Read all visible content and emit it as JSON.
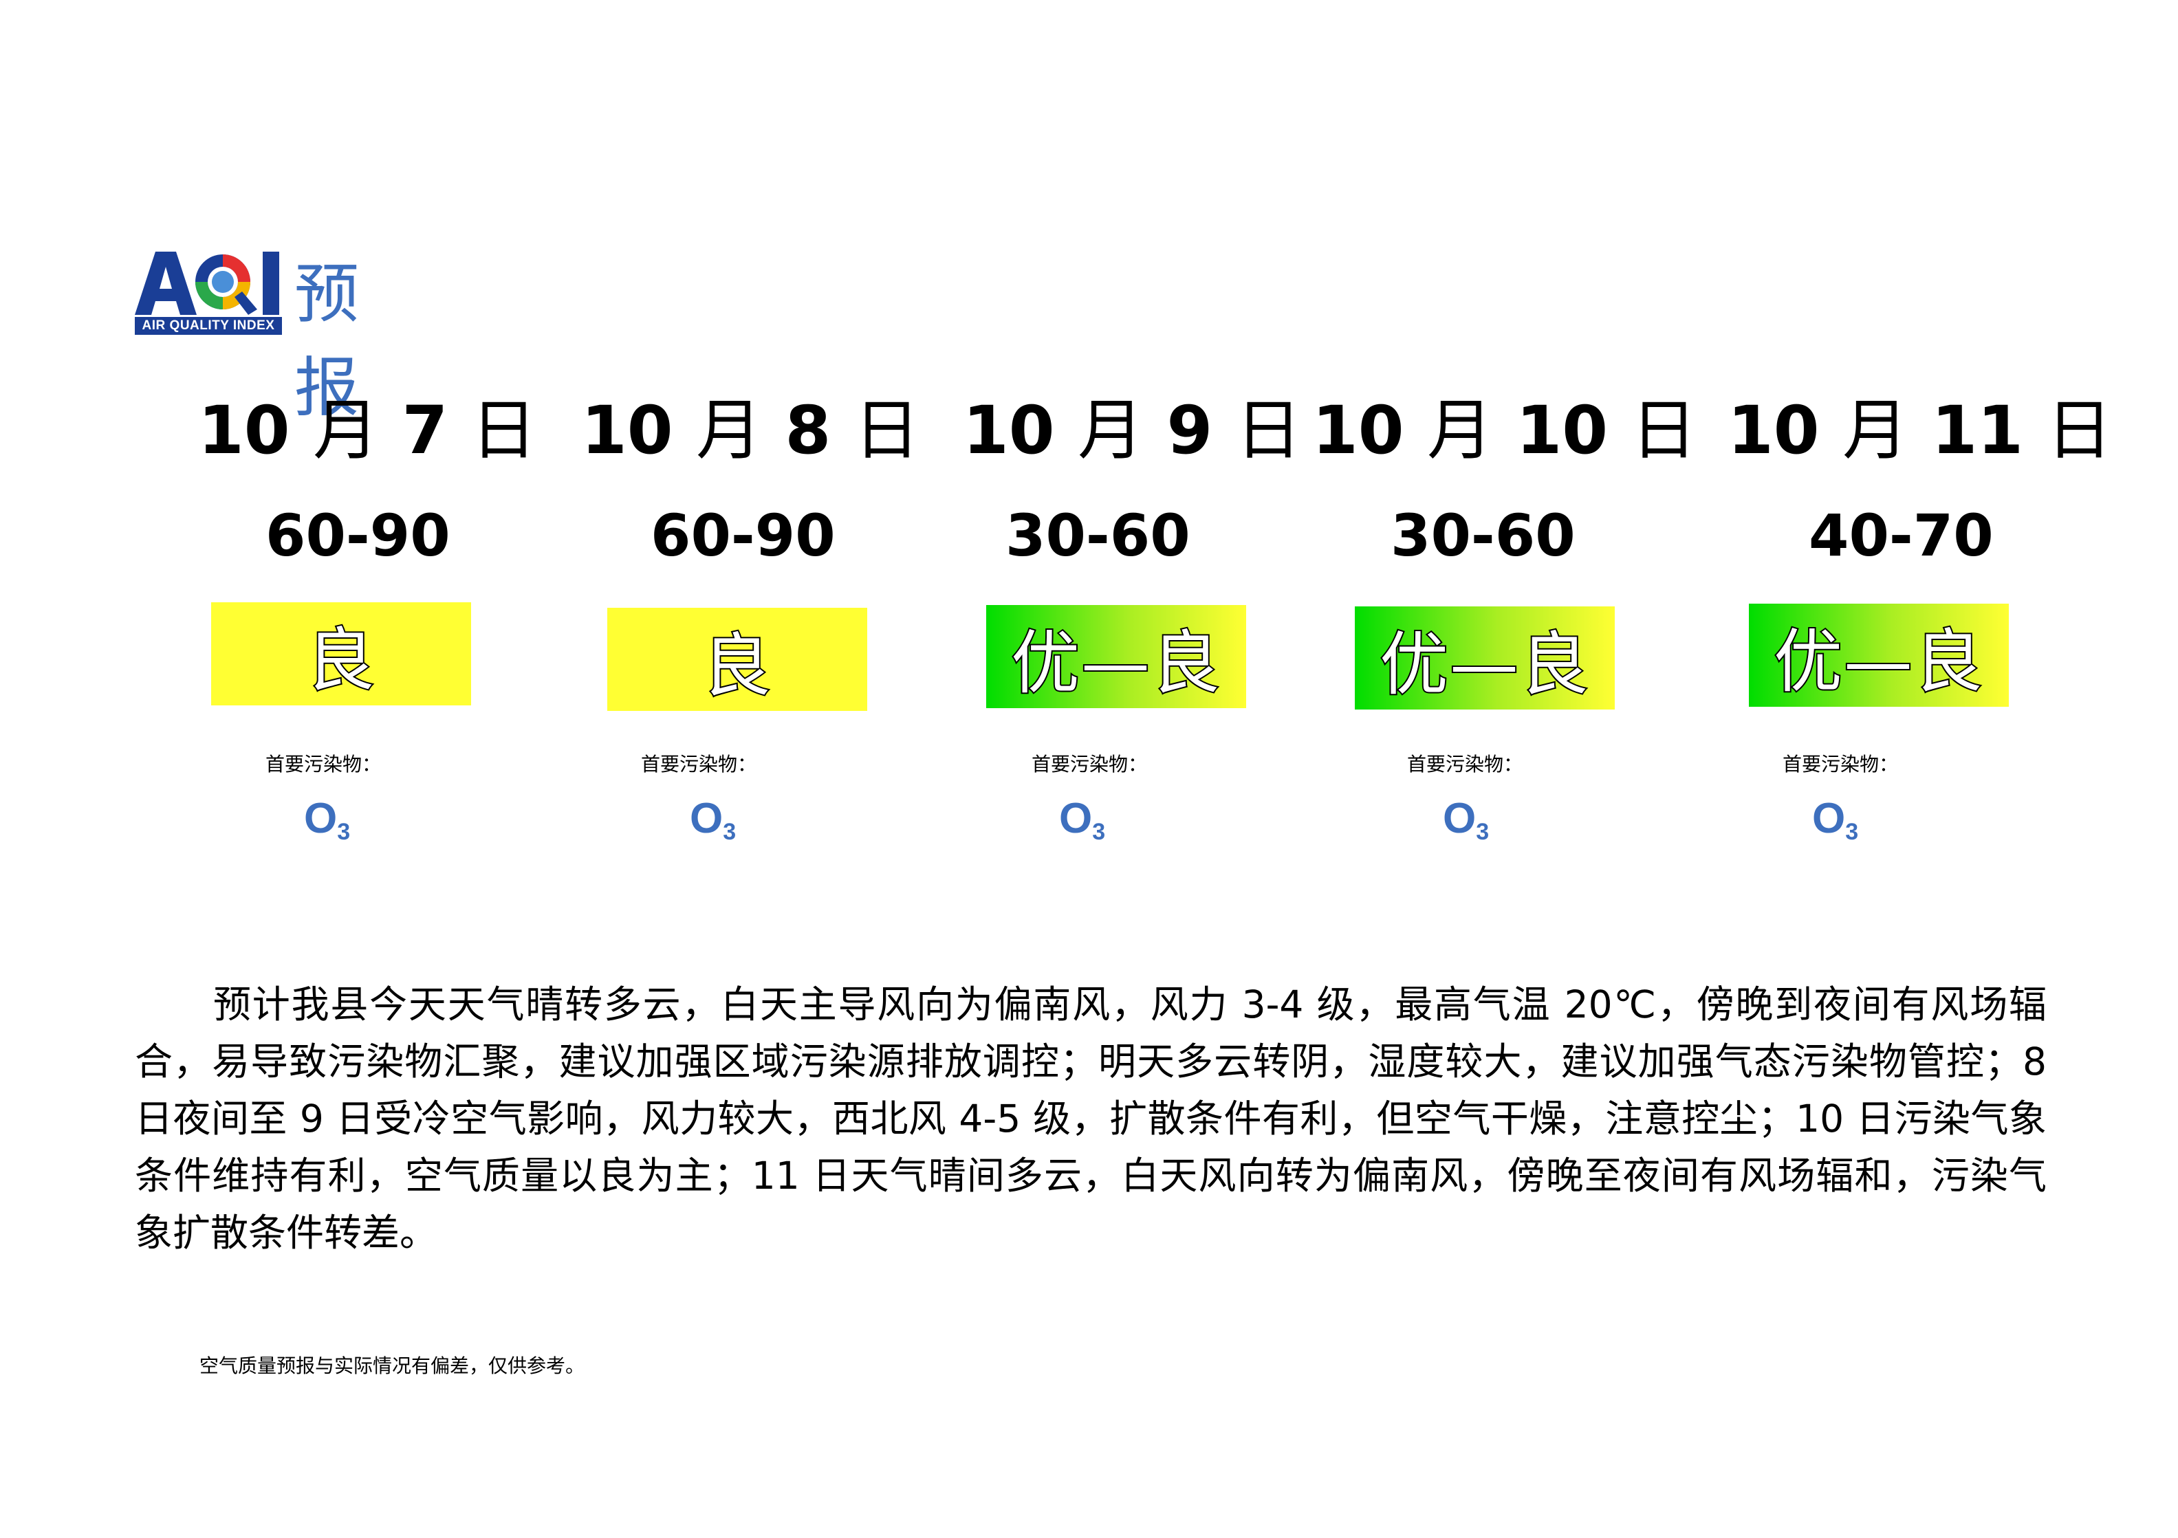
{
  "header": {
    "logo_title": "预报",
    "logo_mark": "AQI",
    "logo_subtitle": "AIR QUALITY INDEX"
  },
  "forecast": [
    {
      "month": "10",
      "day": "7",
      "range": "60-90",
      "level": "良",
      "pollutant_label": "首要污染物：",
      "pollutant": "O",
      "pollutant_sub": "3"
    },
    {
      "month": "10",
      "day": "8",
      "range": "60-90",
      "level": "良",
      "pollutant_label": "首要污染物：",
      "pollutant": "O",
      "pollutant_sub": "3"
    },
    {
      "month": "10",
      "day": "9",
      "range": "30-60",
      "level": "优—良",
      "pollutant_label": "首要污染物：",
      "pollutant": "O",
      "pollutant_sub": "3"
    },
    {
      "month": "10",
      "day": "10",
      "range": "30-60",
      "level": "优—良",
      "pollutant_label": "首要污染物：",
      "pollutant": "O",
      "pollutant_sub": "3"
    },
    {
      "month": "10",
      "day": "11",
      "range": "40-70",
      "level": "优—良",
      "pollutant_label": "首要污染物：",
      "pollutant": "O",
      "pollutant_sub": "3"
    }
  ],
  "labels": {
    "month_char": "月",
    "day_char": "日"
  },
  "description": "预计我县今天天气晴转多云，白天主导风向为偏南风，风力 3-4 级，最高气温 20℃，傍晚到夜间有风场辐合，易导致污染物汇聚，建议加强区域污染源排放调控；明天多云转阴，湿度较大，建议加强气态污染物管控；8 日夜间至 9 日受冷空气影响，风力较大，西北风 4-5 级，扩散条件有利，但空气干燥，注意控尘；10 日污染气象条件维持有利，空气质量以良为主；11 日天气晴间多云，白天风向转为偏南风，傍晚至夜间有风场辐和，污染气象扩散条件转差。",
  "note": "空气质量预报与实际情况有偏差，仅供参考。",
  "colors": {
    "good_yellow": "#ffff33",
    "excellent_green": "#00dd00",
    "brand_blue": "#3d6fbe"
  }
}
